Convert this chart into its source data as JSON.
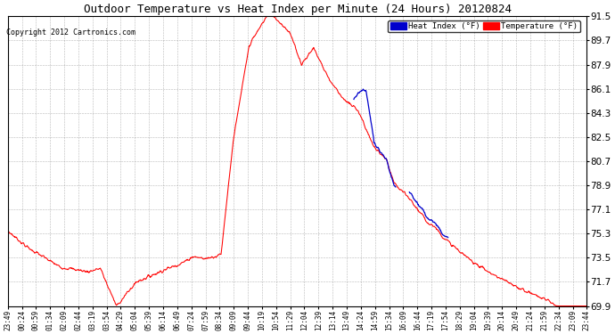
{
  "title": "Outdoor Temperature vs Heat Index per Minute (24 Hours) 20120824",
  "copyright": "Copyright 2012 Cartronics.com",
  "background_color": "#ffffff",
  "plot_bg_color": "#ffffff",
  "grid_color": "#999999",
  "line_color_temp": "#ff0000",
  "line_color_heat": "#0000cc",
  "ylim": [
    69.9,
    91.5
  ],
  "yticks": [
    69.9,
    71.7,
    73.5,
    75.3,
    77.1,
    78.9,
    80.7,
    82.5,
    84.3,
    86.1,
    87.9,
    89.7,
    91.5
  ],
  "xtick_labels": [
    "23:49",
    "00:24",
    "00:59",
    "01:34",
    "02:09",
    "02:44",
    "03:19",
    "03:54",
    "04:29",
    "05:04",
    "05:39",
    "06:14",
    "06:49",
    "07:24",
    "07:59",
    "08:34",
    "09:09",
    "09:44",
    "10:19",
    "10:54",
    "11:29",
    "12:04",
    "12:39",
    "13:14",
    "13:49",
    "14:24",
    "14:59",
    "15:34",
    "16:09",
    "16:44",
    "17:19",
    "17:54",
    "18:29",
    "19:04",
    "19:39",
    "20:14",
    "20:49",
    "21:24",
    "21:59",
    "22:34",
    "23:09",
    "23:44"
  ],
  "legend_heat_label": "Heat Index (°F)",
  "legend_temp_label": "Temperature (°F)"
}
